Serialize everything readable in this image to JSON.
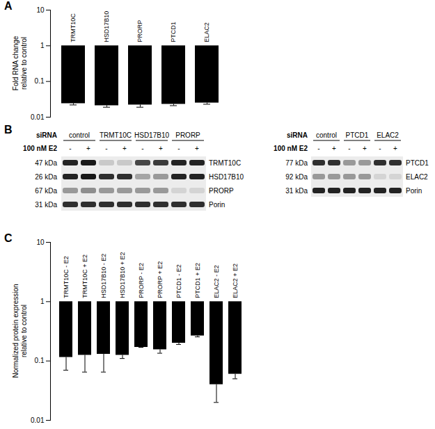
{
  "chart_data": [
    {
      "panel": "A",
      "type": "bar",
      "ylabel": "Fold RNA change relative to control",
      "categories": [
        "TRMT10C",
        "HSD17B10",
        "PRORP",
        "PTCD1",
        "ELAC2"
      ],
      "values": [
        0.024,
        0.021,
        0.022,
        0.023,
        0.025
      ],
      "errors": [
        0.002,
        0.002,
        0.003,
        0.002,
        0.002
      ],
      "baseline": 1,
      "color": "#000000",
      "log": "y",
      "ylim": [
        0.01,
        10
      ],
      "yticks": [
        0.01,
        0.1,
        1,
        10
      ],
      "tick_labels": "y"
    },
    {
      "panel": "C",
      "type": "bar",
      "ylabel": "Normalized protein expression relative to control",
      "categories": [
        "TRMT10C - E2",
        "TRMT10C + E2",
        "HSD17B10 - E2",
        "HSD17B10 + E2",
        "PRORP - E2",
        "PRORP + E2",
        "PTCD1 - E2",
        "PTCD1 + E2",
        "ELAC2 - E2",
        "ELAC2 + E2"
      ],
      "values": [
        0.115,
        0.125,
        0.13,
        0.125,
        0.17,
        0.155,
        0.2,
        0.265,
        0.04,
        0.06
      ],
      "errors": [
        0.045,
        0.06,
        0.065,
        0.015,
        0,
        0.02,
        0.01,
        0.01,
        0.02,
        0.01
      ],
      "baseline": 1,
      "color": "#000000",
      "log": "y",
      "ylim": [
        0.01,
        10
      ],
      "yticks": [
        0.01,
        0.1,
        1,
        10
      ],
      "tick_labels": "y"
    }
  ],
  "blot": {
    "panel": "B",
    "blots": [
      {
        "sirna_label": "siRNA",
        "treatment_label": "100 nM E2",
        "groups": [
          "control",
          "TRMT10C",
          "HSD17B10",
          "PRORP"
        ],
        "treatment": [
          "-",
          "+",
          "-",
          "+",
          "-",
          "+",
          "-",
          "+"
        ],
        "rows": [
          {
            "kda": "47 kDa",
            "protein": "TRMT10C",
            "intensity": [
              0.85,
              0.9,
              0.15,
              0.15,
              0.7,
              0.75,
              0.85,
              0.85
            ]
          },
          {
            "kda": "26 kDa",
            "protein": "HSD17B10",
            "intensity": [
              0.85,
              0.9,
              0.8,
              0.8,
              0.3,
              0.35,
              0.85,
              0.85
            ]
          },
          {
            "kda": "67 kDa",
            "protein": "PRORP",
            "intensity": [
              0.35,
              0.4,
              0.35,
              0.35,
              0.35,
              0.35,
              0.1,
              0.1
            ]
          },
          {
            "kda": "31 kDa",
            "protein": "Porin",
            "intensity": [
              0.8,
              0.8,
              0.8,
              0.8,
              0.8,
              0.8,
              0.8,
              0.8
            ]
          }
        ]
      },
      {
        "sirna_label": "siRNA",
        "treatment_label": "100 nM E2",
        "groups": [
          "control",
          "PTCD1",
          "ELAC2"
        ],
        "treatment": [
          "-",
          "+",
          "-",
          "+",
          "-",
          "+"
        ],
        "rows": [
          {
            "kda": "77 kDa",
            "protein": "PTCD1",
            "intensity": [
              0.8,
              0.8,
              0.35,
              0.35,
              0.8,
              0.8
            ]
          },
          {
            "kda": "92 kDa",
            "protein": "ELAC2",
            "intensity": [
              0.35,
              0.35,
              0.35,
              0.35,
              0.1,
              0.1
            ]
          },
          {
            "kda": "31 kDa",
            "protein": "Porin",
            "intensity": [
              0.85,
              0.85,
              0.85,
              0.85,
              0.85,
              0.85
            ]
          }
        ]
      }
    ]
  }
}
